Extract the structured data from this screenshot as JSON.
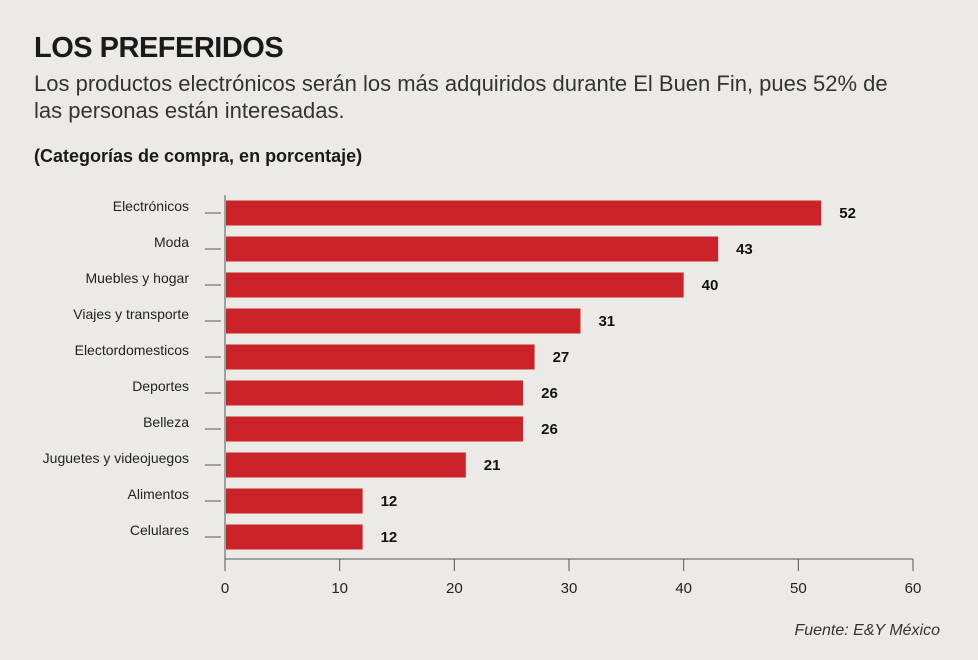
{
  "header": {
    "title": "LOS PREFERIDOS",
    "subtitle": "Los productos electrónicos serán los más adquiridos durante El Buen Fin, pues 52% de las personas están interesadas.",
    "unit_note": "(Categorías de compra, en porcentaje)"
  },
  "footer": {
    "source": "Fuente: E&Y México"
  },
  "colors": {
    "bar": "#cc2229",
    "background": "#ebeae7",
    "axis": "#555555"
  },
  "chart_data": {
    "type": "bar",
    "orientation": "horizontal",
    "categories": [
      "Electrónicos",
      "Moda",
      "Muebles y hogar",
      "Viajes y transporte",
      "Electordomesticos",
      "Deportes",
      "Belleza",
      "Juguetes y videojuegos",
      "Alimentos",
      "Celulares"
    ],
    "values": [
      52,
      43,
      40,
      31,
      27,
      26,
      26,
      21,
      12,
      12
    ],
    "xlim": [
      0,
      60
    ],
    "xticks": [
      0,
      10,
      20,
      30,
      40,
      50,
      60
    ],
    "grid": false,
    "legend": "none"
  }
}
